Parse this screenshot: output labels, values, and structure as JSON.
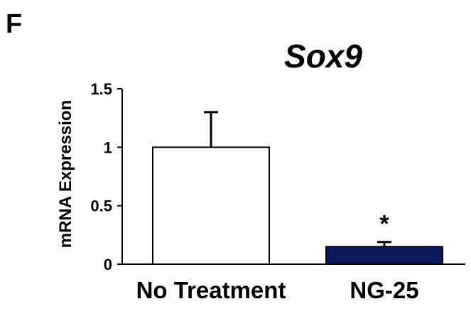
{
  "panel_label": "F",
  "chart_data": {
    "type": "bar",
    "title": "Sox9",
    "xlabel": "",
    "ylabel": "mRNA Expression",
    "categories": [
      "No Treatment",
      "NG-25"
    ],
    "values": [
      1.0,
      0.15
    ],
    "error_bars": [
      0.3,
      0.04
    ],
    "bar_colors": [
      "#ffffff",
      "#0a1a5c"
    ],
    "ylim": [
      0,
      1.5
    ],
    "yticks": [
      {
        "value": 0,
        "label": "0"
      },
      {
        "value": 0.5,
        "label": "0.5"
      },
      {
        "value": 1,
        "label": "1"
      },
      {
        "value": 1.5,
        "label": "1.5"
      }
    ],
    "annotations": [
      {
        "category": "NG-25",
        "text": "*"
      }
    ],
    "grid": false,
    "legend": "none"
  }
}
